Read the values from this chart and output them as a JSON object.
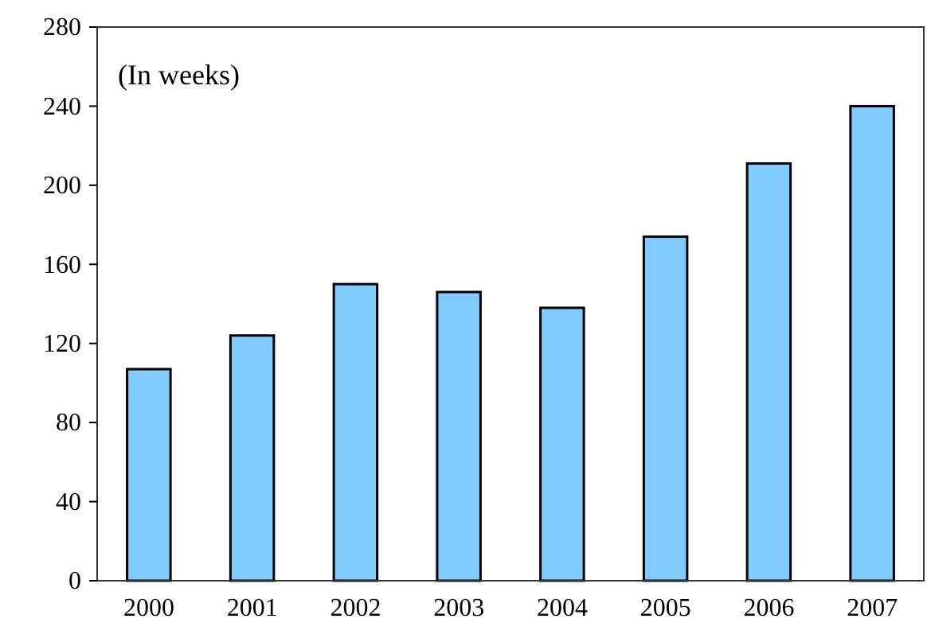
{
  "chart_data": {
    "type": "bar",
    "annotations": [
      "(In weeks)"
    ],
    "categories": [
      "2000",
      "2001",
      "2002",
      "2003",
      "2004",
      "2005",
      "2006",
      "2007"
    ],
    "values": [
      107,
      124,
      150,
      146,
      138,
      174,
      211,
      240
    ],
    "color": "#80cbff",
    "ylim": [
      0,
      280
    ],
    "yticks": [
      0,
      40,
      80,
      120,
      160,
      200,
      240,
      280
    ],
    "grid": false
  }
}
